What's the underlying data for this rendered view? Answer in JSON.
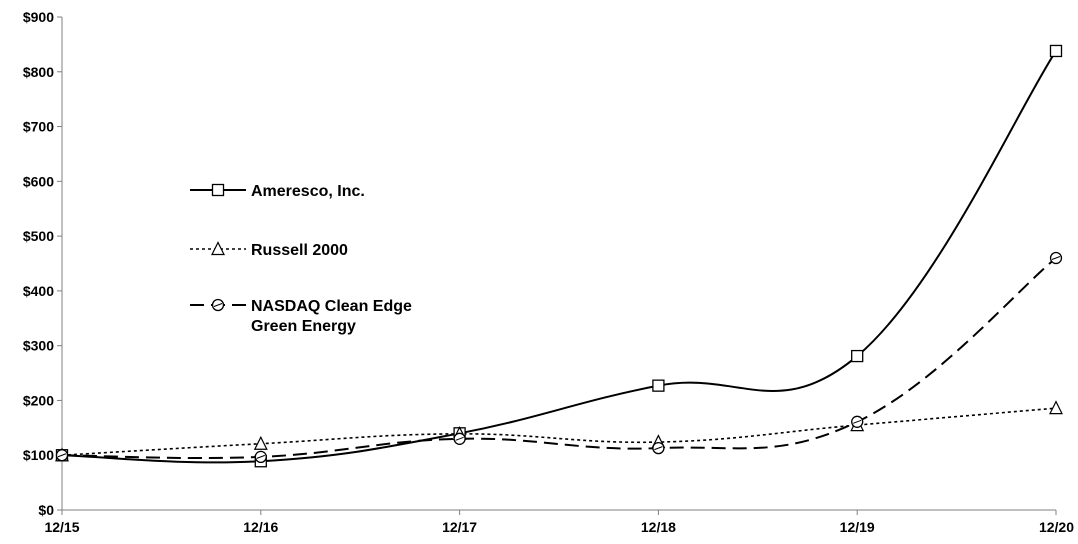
{
  "chart_data": {
    "type": "line",
    "title": "",
    "xlabel": "",
    "ylabel": "",
    "categories": [
      "12/15",
      "12/16",
      "12/17",
      "12/18",
      "12/19",
      "12/20"
    ],
    "ylim": [
      0,
      900
    ],
    "yticks": [
      "$0",
      "$100",
      "$200",
      "$300",
      "$400",
      "$500",
      "$600",
      "$700",
      "$800",
      "$900"
    ],
    "ytick_values": [
      0,
      100,
      200,
      300,
      400,
      500,
      600,
      700,
      800,
      900
    ],
    "grid": false,
    "legend_position": "left-center",
    "series": [
      {
        "name": "Ameresco, Inc.",
        "values": [
          100,
          89,
          140,
          227,
          281,
          838
        ],
        "marker": "square",
        "dash": "solid",
        "color": "#000000"
      },
      {
        "name": "Russell 2000",
        "values": [
          100,
          121,
          139,
          124,
          155,
          186
        ],
        "marker": "triangle",
        "dash": "dotted",
        "color": "#000000"
      },
      {
        "name": "NASDAQ Clean Edge Green Energy",
        "name_lines": [
          "NASDAQ Clean Edge",
          "Green Energy"
        ],
        "values": [
          100,
          97,
          130,
          113,
          161,
          460
        ],
        "marker": "circle",
        "dash": "dashed",
        "color": "#000000"
      }
    ]
  }
}
